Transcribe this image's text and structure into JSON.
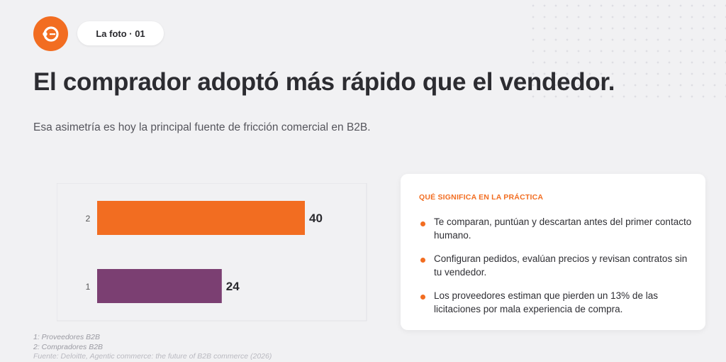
{
  "header": {
    "badge_label": "La foto · 01",
    "logo_icon": "orange-circle-logo",
    "accent_color": "#f26d21"
  },
  "title": "El comprador adoptó más rápido que el vendedor.",
  "subtitle": "Esa asimetría es hoy la principal fuente de fricción comercial en B2B.",
  "chart_data": {
    "type": "bar",
    "orientation": "horizontal",
    "categories": [
      "2",
      "1"
    ],
    "values": [
      40,
      24
    ],
    "colors": [
      "#f26d21",
      "#7b3f72"
    ],
    "data_labels": [
      "40",
      "24"
    ],
    "title": "",
    "xlabel": "",
    "ylabel": ""
  },
  "footnotes": [
    "1: Proveedores B2B",
    "2: Compradores B2B",
    "Fuente: Deloitte, Agentic commerce: the future of B2B commerce (2026)"
  ],
  "card": {
    "heading": "QUÉ SIGNIFICA EN LA PRÁCTICA",
    "items": [
      "Te comparan, puntúan y descartan antes del primer contacto humano.",
      "Configuran pedidos, evalúan precios y revisan contratos sin tu vendedor.",
      "Los proveedores estiman que pierden un 13% de las licitaciones por mala experiencia de compra."
    ]
  }
}
